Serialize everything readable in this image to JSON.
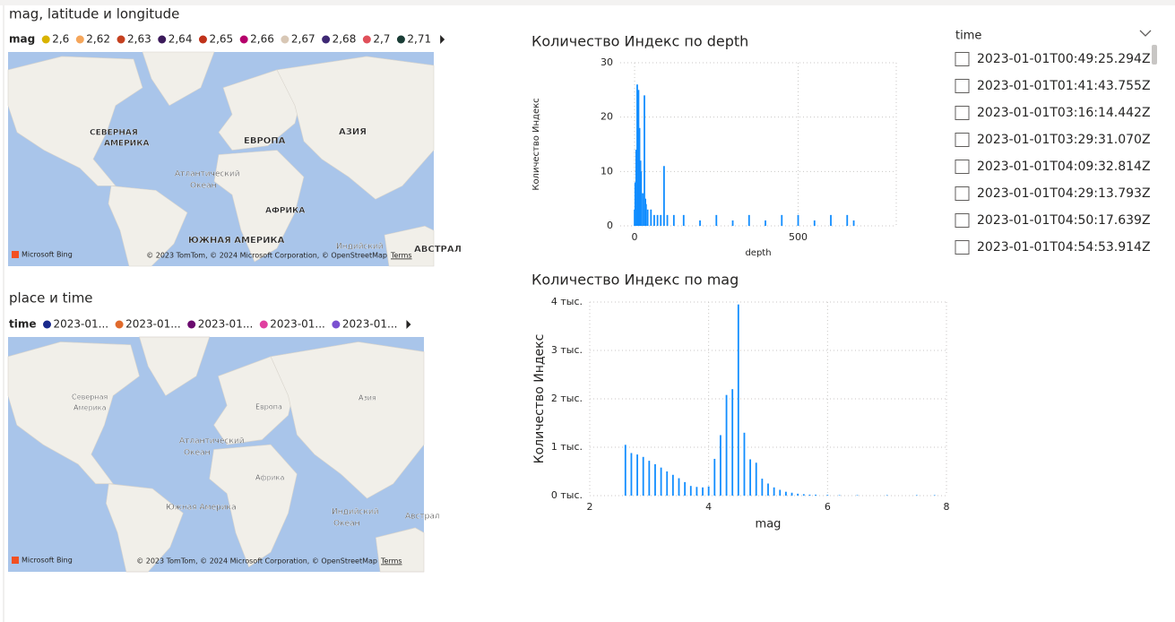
{
  "maps": [
    {
      "title": "mag, latitude и longitude",
      "legend_title": "mag",
      "legend": [
        {
          "name": "2,6",
          "color": "#d9b300"
        },
        {
          "name": "2,62",
          "color": "#f5a65b"
        },
        {
          "name": "2,63",
          "color": "#c5401f"
        },
        {
          "name": "2,64",
          "color": "#3b1a5a"
        },
        {
          "name": "2,65",
          "color": "#c0321a"
        },
        {
          "name": "2,66",
          "color": "#b5006b"
        },
        {
          "name": "2,67",
          "color": "#d8c7b5"
        },
        {
          "name": "2,68",
          "color": "#3e2874"
        },
        {
          "name": "2,7",
          "color": "#e0505a"
        },
        {
          "name": "2,71",
          "color": "#1a3d36"
        }
      ],
      "labels": [
        "СЕВЕРНАЯ",
        "АМЕРИКА",
        "ЕВРОПА",
        "АЗИЯ",
        "Атлантический",
        "Океан",
        "АФРИКА",
        "ЮЖНАЯ АМЕРИКА",
        "Индийский",
        "АВСТРАЛ"
      ],
      "logo": "Microsoft Bing",
      "attribution": "© 2023 TomTom, © 2024 Microsoft Corporation, © OpenStreetMap",
      "terms": "Terms"
    },
    {
      "title": "place и time",
      "legend_title": "time",
      "legend": [
        {
          "name": "2023-01...",
          "color": "#1a2a8c"
        },
        {
          "name": "2023-01...",
          "color": "#e06a2c"
        },
        {
          "name": "2023-01...",
          "color": "#6a0a6e"
        },
        {
          "name": "2023-01...",
          "color": "#e040a0"
        },
        {
          "name": "2023-01...",
          "color": "#7a50d0"
        }
      ],
      "labels": [
        "Северная",
        "Америка",
        "Европа",
        "Азия",
        "Атлантический",
        "Океан",
        "Африка",
        "Южная Америка",
        "Индийский",
        "Океан",
        "Австрал"
      ],
      "logo": "Microsoft Bing",
      "attribution": "© 2023 TomTom, © 2024 Microsoft Corporation, © OpenStreetMap",
      "terms": "Terms"
    }
  ],
  "chart_data": [
    {
      "type": "bar",
      "title": "Количество Индекс по depth",
      "x_label": "depth",
      "y_label": "Количество Индекс",
      "color": "#118dff",
      "x": [
        0,
        2,
        5,
        8,
        10,
        12,
        15,
        18,
        20,
        25,
        30,
        33,
        35,
        40,
        50,
        60,
        70,
        80,
        90,
        100,
        120,
        150,
        200,
        250,
        300,
        350,
        400,
        450,
        500,
        550,
        600,
        650,
        670
      ],
      "values": [
        3,
        8,
        14,
        26,
        22,
        25,
        18,
        12,
        10,
        6,
        24,
        5,
        4,
        3,
        3,
        2,
        2,
        2,
        11,
        2,
        2,
        2,
        1,
        2,
        1,
        2,
        1,
        2,
        2,
        1,
        2,
        2,
        1
      ],
      "xlim": [
        -44,
        800
      ],
      "xticks": [
        0,
        500
      ],
      "ylim": [
        0,
        30
      ],
      "yticks": [
        0,
        10,
        20,
        30
      ],
      "grid": true
    },
    {
      "type": "bar",
      "title": "Количество Индекс по mag",
      "x_label": "mag",
      "y_label": "Количество Индекс",
      "color": "#118dff",
      "x": [
        2.6,
        2.7,
        2.8,
        2.9,
        3.0,
        3.1,
        3.2,
        3.3,
        3.4,
        3.5,
        3.6,
        3.7,
        3.8,
        3.9,
        4.0,
        4.1,
        4.2,
        4.3,
        4.4,
        4.5,
        4.6,
        4.7,
        4.8,
        4.9,
        5.0,
        5.1,
        5.2,
        5.3,
        5.4,
        5.5,
        5.6,
        5.7,
        5.8,
        6.0,
        6.2,
        6.5,
        7.0,
        7.5,
        7.8
      ],
      "values": [
        1050,
        880,
        850,
        800,
        720,
        650,
        580,
        500,
        430,
        360,
        280,
        200,
        180,
        170,
        190,
        760,
        1250,
        2080,
        2200,
        3950,
        1300,
        750,
        680,
        350,
        250,
        170,
        120,
        80,
        60,
        40,
        30,
        20,
        20,
        15,
        10,
        10,
        10,
        10,
        10
      ],
      "xlim": [
        2,
        8
      ],
      "xticks": [
        2,
        4,
        6,
        8
      ],
      "ylim": [
        0,
        4000
      ],
      "yticks": [
        {
          "value": 0,
          "label": "0 тыс."
        },
        {
          "value": 1000,
          "label": "1 тыс."
        },
        {
          "value": 2000,
          "label": "2 тыс."
        },
        {
          "value": 3000,
          "label": "3 тыс."
        },
        {
          "value": 4000,
          "label": "4 тыс."
        }
      ],
      "grid": true
    }
  ],
  "slicer": {
    "title": "time",
    "items": [
      "2023-01-01T00:49:25.294Z",
      "2023-01-01T01:41:43.755Z",
      "2023-01-01T03:16:14.442Z",
      "2023-01-01T03:29:31.070Z",
      "2023-01-01T04:09:32.814Z",
      "2023-01-01T04:29:13.793Z",
      "2023-01-01T04:50:17.639Z",
      "2023-01-01T04:54:53.914Z"
    ]
  }
}
